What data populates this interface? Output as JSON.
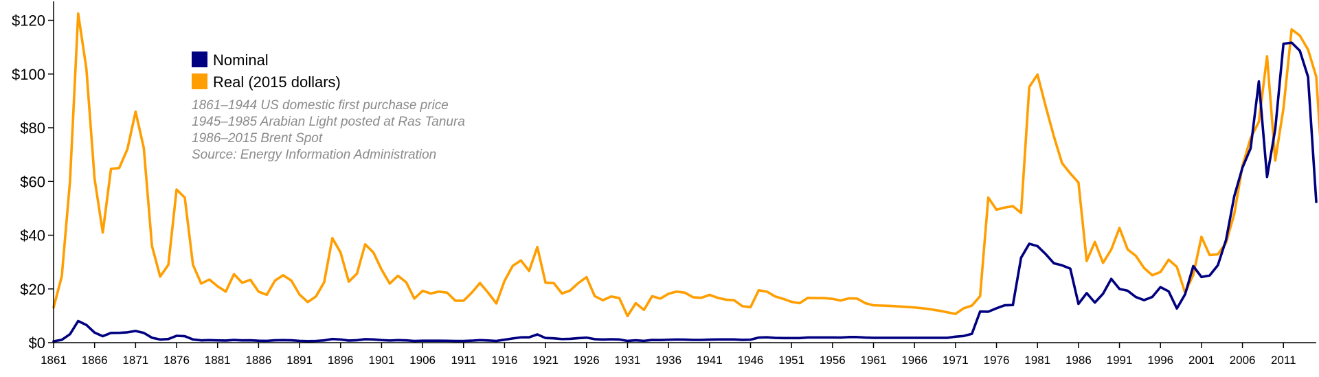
{
  "chart_data": {
    "type": "line",
    "x_start": 1861,
    "x_end": 2015,
    "xlim": [
      1861,
      2015
    ],
    "ylim": [
      0,
      125
    ],
    "x_ticks": [
      "1861",
      "1866",
      "1871",
      "1876",
      "1881",
      "1886",
      "1891",
      "1896",
      "1901",
      "1906",
      "1911",
      "1916",
      "1921",
      "1926",
      "1931",
      "1936",
      "1941",
      "1946",
      "1951",
      "1956",
      "1961",
      "1966",
      "1971",
      "1976",
      "1981",
      "1986",
      "1991",
      "1996",
      "2001",
      "2006",
      "2011"
    ],
    "y_ticks": [
      {
        "value": 0,
        "label": "$0"
      },
      {
        "value": 20,
        "label": "$20"
      },
      {
        "value": 40,
        "label": "$40"
      },
      {
        "value": 60,
        "label": "$60"
      },
      {
        "value": 80,
        "label": "$80"
      },
      {
        "value": 100,
        "label": "$100"
      },
      {
        "value": 120,
        "label": "$120"
      }
    ],
    "grid": false,
    "legend_position": "top-left",
    "series": [
      {
        "name": "Nominal",
        "color": "#000080",
        "values": [
          0.49,
          1.05,
          3.15,
          8.06,
          6.59,
          3.74,
          2.41,
          3.62,
          3.64,
          3.86,
          4.34,
          3.64,
          1.83,
          1.17,
          1.35,
          2.56,
          2.42,
          1.19,
          0.86,
          0.95,
          0.86,
          0.78,
          1.0,
          0.84,
          0.88,
          0.71,
          0.67,
          0.88,
          0.94,
          0.87,
          0.67,
          0.56,
          0.64,
          0.84,
          1.36,
          1.18,
          0.79,
          0.91,
          1.29,
          1.19,
          0.96,
          0.8,
          0.94,
          0.86,
          0.62,
          0.73,
          0.72,
          0.72,
          0.7,
          0.61,
          0.61,
          0.74,
          0.95,
          0.81,
          0.64,
          1.1,
          1.56,
          1.98,
          2.01,
          3.07,
          1.73,
          1.61,
          1.34,
          1.43,
          1.68,
          1.88,
          1.3,
          1.17,
          1.27,
          1.19,
          0.65,
          0.87,
          0.67,
          1.0,
          0.97,
          1.09,
          1.18,
          1.13,
          1.02,
          1.02,
          1.14,
          1.19,
          1.2,
          1.21,
          1.05,
          1.12,
          1.9,
          1.99,
          1.78,
          1.71,
          1.71,
          1.71,
          1.93,
          1.93,
          1.93,
          1.93,
          1.9,
          2.08,
          2.08,
          1.9,
          1.8,
          1.8,
          1.8,
          1.8,
          1.8,
          1.8,
          1.8,
          1.8,
          1.8,
          1.8,
          2.24,
          2.48,
          3.29,
          11.58,
          11.53,
          12.8,
          13.92,
          14.02,
          31.61,
          36.83,
          35.93,
          32.97,
          29.55,
          28.78,
          27.56,
          14.43,
          18.44,
          14.92,
          18.23,
          23.73,
          20.0,
          19.32,
          16.97,
          15.82,
          17.02,
          20.67,
          19.09,
          12.72,
          17.97,
          28.5,
          24.44,
          25.02,
          28.83,
          38.27,
          54.52,
          65.14,
          72.39,
          97.26,
          61.67,
          79.5,
          111.26,
          111.67,
          108.66,
          98.95,
          52.39
        ]
      },
      {
        "name": "Real (2015 dollars)",
        "color": "#ff9e00",
        "values": [
          13.1,
          24.7,
          60.0,
          122.5,
          102.0,
          61.0,
          41.0,
          64.7,
          65.0,
          72.0,
          86.0,
          72.5,
          36.0,
          24.6,
          29.0,
          57.0,
          54.0,
          29.0,
          22.0,
          23.5,
          21.0,
          19.0,
          25.5,
          22.3,
          23.4,
          19.0,
          17.8,
          23.1,
          25.1,
          23.1,
          17.9,
          15.1,
          17.2,
          22.5,
          38.9,
          33.6,
          22.7,
          25.7,
          36.6,
          33.6,
          27.2,
          22.0,
          24.9,
          22.5,
          16.4,
          19.3,
          18.3,
          19.0,
          18.6,
          15.6,
          15.6,
          18.6,
          22.2,
          18.6,
          14.6,
          23.0,
          28.6,
          30.6,
          26.7,
          35.6,
          22.3,
          22.2,
          18.3,
          19.4,
          22.2,
          24.4,
          17.3,
          15.8,
          17.2,
          16.6,
          9.9,
          14.7,
          12.2,
          17.3,
          16.4,
          18.2,
          19.0,
          18.6,
          16.9,
          16.7,
          17.8,
          16.7,
          16.0,
          15.8,
          13.6,
          13.2,
          19.5,
          19.0,
          17.2,
          16.3,
          15.2,
          14.7,
          16.7,
          16.6,
          16.6,
          16.3,
          15.7,
          16.5,
          16.4,
          14.7,
          13.9,
          13.8,
          13.7,
          13.5,
          13.3,
          13.1,
          12.8,
          12.4,
          11.9,
          11.3,
          10.7,
          12.8,
          13.8,
          17.3,
          54.0,
          49.5,
          50.3,
          50.8,
          48.3,
          95.2,
          99.8,
          88.0,
          76.8,
          66.8,
          63.0,
          59.6,
          30.4,
          37.5,
          29.7,
          34.7,
          42.7,
          34.7,
          32.3,
          27.8,
          25.1,
          26.3,
          30.9,
          28.2,
          18.6,
          25.2,
          39.4,
          32.6,
          32.9,
          37.2,
          47.9,
          65.8,
          76.2,
          82.2,
          106.6,
          67.8,
          87.2,
          116.6,
          114.3,
          109.1,
          99.0,
          52.3
        ]
      }
    ]
  },
  "legend": {
    "items": [
      {
        "label": "Nominal",
        "color": "#000080"
      },
      {
        "label": "Real (2015 dollars)",
        "color": "#ff9e00"
      }
    ]
  },
  "notes": [
    "1861–1944 US domestic first purchase price",
    "1945–1985 Arabian Light posted at Ras Tanura",
    "1986–2015 Brent Spot",
    "Source: Energy Information Administration"
  ]
}
